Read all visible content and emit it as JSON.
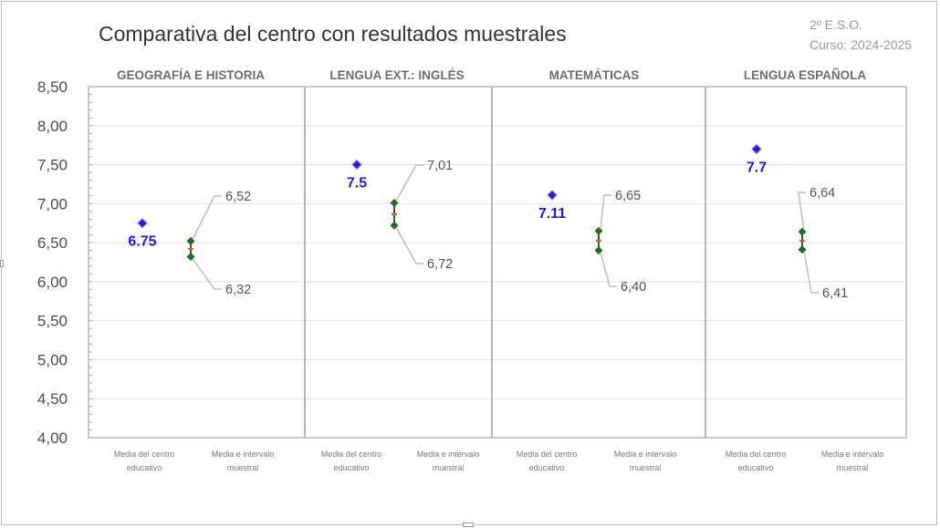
{
  "header": {
    "title": "Comparativa del centro con resultados muestrales",
    "course": "2º E.S.O.",
    "year": "Curso: 2024-2025"
  },
  "colors": {
    "center_point": "#1f1fd9",
    "center_label": "#1a1aee",
    "interval_marker": "#1f6b1f",
    "interval_mean": "#e05050",
    "axis_text": "#4d4d4d",
    "grid": "#e3e3e3"
  },
  "chart_data": {
    "type": "scatter",
    "title": "Comparativa del centro con resultados muestrales",
    "ylim": [
      4.0,
      8.5
    ],
    "yticks": [
      "4,00",
      "4,50",
      "5,00",
      "5,50",
      "6,00",
      "6,50",
      "7,00",
      "7,50",
      "8,00",
      "8,50"
    ],
    "ytick_values": [
      4.0,
      4.5,
      5.0,
      5.5,
      6.0,
      6.5,
      7.0,
      7.5,
      8.0,
      8.5
    ],
    "grid": true,
    "category_labels": [
      "Media del centro educativo",
      "Media e intervalo muestral"
    ],
    "panels": [
      {
        "subject": "GEOGRAFÍA E HISTORIA",
        "center_mean": 6.75,
        "center_label": "6.75",
        "interval_upper": 6.52,
        "upper_label": "6,52",
        "interval_lower": 6.32,
        "lower_label": "6,32",
        "interval_mean": 6.42
      },
      {
        "subject": "LENGUA EXT.: INGLÉS",
        "center_mean": 7.5,
        "center_label": "7.5",
        "interval_upper": 7.01,
        "upper_label": "7,01",
        "interval_lower": 6.72,
        "lower_label": "6,72",
        "interval_mean": 6.865
      },
      {
        "subject": "MATEMÁTICAS",
        "center_mean": 7.11,
        "center_label": "7.11",
        "interval_upper": 6.65,
        "upper_label": "6,65",
        "interval_lower": 6.4,
        "lower_label": "6,40",
        "interval_mean": 6.525
      },
      {
        "subject": "LENGUA ESPAÑOLA",
        "center_mean": 7.7,
        "center_label": "7.7",
        "interval_upper": 6.64,
        "upper_label": "6,64",
        "interval_lower": 6.41,
        "lower_label": "6,41",
        "interval_mean": 6.525
      }
    ]
  }
}
